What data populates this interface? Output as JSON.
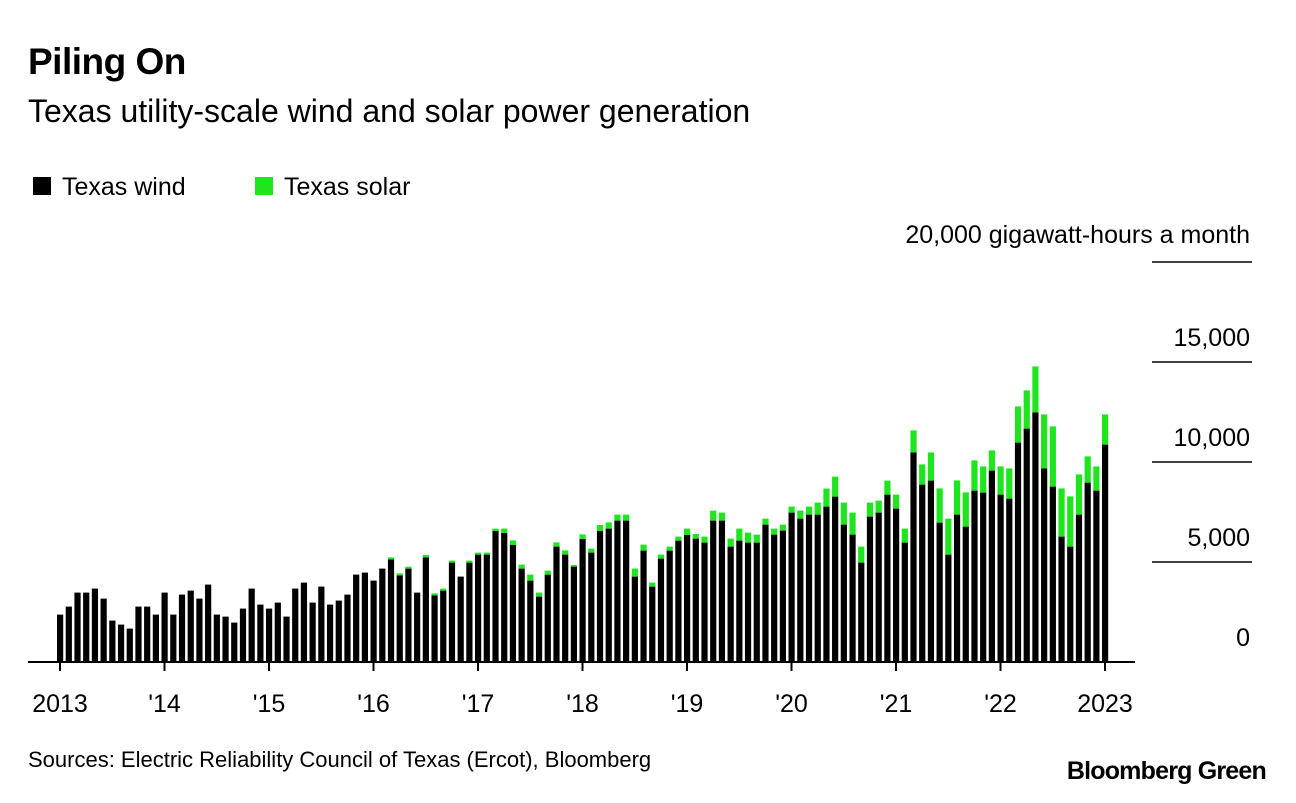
{
  "chart_data": {
    "type": "bar",
    "stacked": true,
    "title": "Piling On",
    "subtitle": "Texas utility-scale wind and solar power generation",
    "ylabel": "20,000 gigawatt-hours a month",
    "ylim": [
      0,
      20000
    ],
    "yticks": [
      0,
      5000,
      10000,
      15000,
      20000
    ],
    "ytick_labels": [
      "0",
      "5,000",
      "10,000",
      "15,000",
      "20,000"
    ],
    "xlabel": "",
    "x_start": "2013-01",
    "x_end": "2023-01",
    "xtick_labels": [
      "2013",
      "'14",
      "'15",
      "'16",
      "'17",
      "'18",
      "'19",
      "'20",
      "'21",
      "'22",
      "2023"
    ],
    "legend_position": "top-left",
    "series": [
      {
        "name": "Texas wind",
        "color": "#000000",
        "values": [
          2370,
          2770,
          3470,
          3470,
          3670,
          3170,
          2070,
          1870,
          1670,
          2770,
          2770,
          2370,
          3470,
          2370,
          3370,
          3570,
          3170,
          3870,
          2370,
          2270,
          1970,
          2670,
          3670,
          2870,
          2670,
          2970,
          2270,
          3670,
          3970,
          2970,
          3770,
          2870,
          3070,
          3370,
          4370,
          4470,
          4070,
          4670,
          5130,
          4330,
          4670,
          3470,
          5230,
          3330,
          3570,
          4970,
          4270,
          4970,
          5370,
          5370,
          6550,
          6450,
          5850,
          4670,
          4070,
          3270,
          4370,
          5770,
          5370,
          4770,
          6150,
          5470,
          6550,
          6670,
          7070,
          7070,
          4270,
          5570,
          3770,
          5170,
          5570,
          6070,
          6350,
          6170,
          5970,
          7070,
          7070,
          5770,
          6070,
          5970,
          5970,
          6870,
          6370,
          6570,
          7470,
          7170,
          7370,
          7370,
          7770,
          8270,
          6870,
          6370,
          4970,
          7270,
          7470,
          8370,
          7670,
          5970,
          10480,
          8870,
          9070,
          6970,
          5370,
          7370,
          6770,
          8570,
          8470,
          9570,
          8370,
          8170,
          10970,
          11670,
          12480,
          9680,
          8770,
          6270,
          5770,
          7370,
          8970,
          8570,
          10870
        ]
      },
      {
        "name": "Texas solar",
        "color": "#1ee51e",
        "values": [
          0,
          0,
          0,
          0,
          0,
          0,
          0,
          0,
          0,
          0,
          0,
          0,
          0,
          0,
          0,
          0,
          0,
          0,
          0,
          0,
          0,
          0,
          0,
          0,
          0,
          0,
          0,
          0,
          0,
          0,
          0,
          0,
          0,
          0,
          0,
          0,
          0,
          0,
          100,
          100,
          100,
          0,
          120,
          100,
          100,
          100,
          0,
          100,
          100,
          100,
          120,
          220,
          230,
          200,
          300,
          200,
          200,
          210,
          210,
          80,
          230,
          200,
          300,
          310,
          300,
          300,
          400,
          300,
          200,
          200,
          200,
          200,
          320,
          230,
          300,
          500,
          400,
          400,
          600,
          500,
          400,
          300,
          300,
          300,
          300,
          400,
          400,
          600,
          900,
          1000,
          1100,
          1100,
          800,
          700,
          600,
          700,
          700,
          700,
          1100,
          1010,
          1410,
          1710,
          1800,
          1710,
          1710,
          1510,
          1310,
          1010,
          1410,
          1510,
          1810,
          1910,
          2300,
          2700,
          3010,
          2410,
          2510,
          2010,
          1310,
          1210,
          1510
        ]
      }
    ],
    "source": "Sources: Electric Reliability Council of Texas (Ercot), Bloomberg"
  },
  "branding": "Bloomberg Green"
}
